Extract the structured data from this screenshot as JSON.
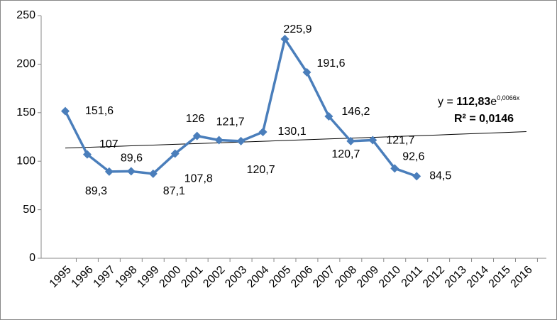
{
  "chart_data": {
    "type": "line",
    "categories": [
      "1995",
      "1996",
      "1997",
      "1998",
      "1999",
      "2000",
      "2001",
      "2002",
      "2003",
      "2004",
      "2005",
      "2006",
      "2007",
      "2008",
      "2009",
      "2010",
      "2011",
      "2012",
      "2013",
      "2014",
      "2015",
      "2016"
    ],
    "series": [
      {
        "name": null,
        "color": "#4a7ebb",
        "values": [
          151.6,
          107,
          89.3,
          89.6,
          87.1,
          107.8,
          126,
          121.7,
          120.7,
          130.1,
          225.9,
          191.6,
          146.2,
          120.7,
          121.7,
          92.6,
          84.5,
          null,
          null,
          null,
          null,
          null
        ],
        "value_labels": [
          "151,6",
          "107",
          "89,3",
          "89,6",
          "87,1",
          "107,8",
          "126",
          "121,7",
          "120,7",
          "130,1",
          "225,9",
          "191,6",
          "146,2",
          "120,7",
          "121,7",
          "92,6",
          "84,5",
          null,
          null,
          null,
          null,
          null
        ]
      }
    ],
    "ylim": [
      0,
      250
    ],
    "yticks": [
      0,
      50,
      100,
      150,
      200,
      250
    ],
    "grid": false,
    "trendline": {
      "kind": "exponential",
      "a": 112.83,
      "b": 0.0066,
      "color": "#000000",
      "equation_prefix": "y = ",
      "a_label": "112,83",
      "exponent_label": "0,0066x",
      "r2_label": "R² = 0,0146"
    }
  }
}
